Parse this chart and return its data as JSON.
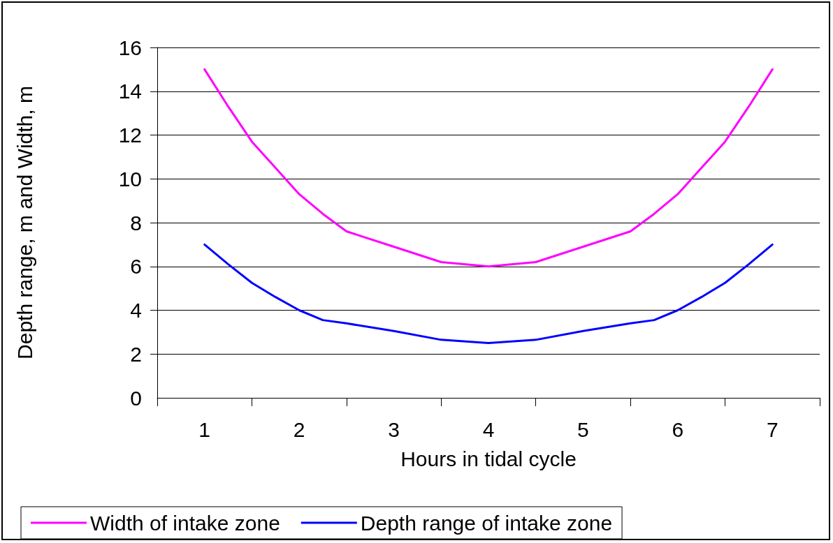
{
  "chart_data": {
    "type": "line",
    "xlabel": "Hours in tidal cycle",
    "ylabel": "Depth range, m and Width, m",
    "x": [
      1,
      1.25,
      1.5,
      1.75,
      2,
      2.25,
      2.5,
      3,
      3.5,
      4,
      4.5,
      5,
      5.5,
      5.75,
      6,
      6.25,
      6.5,
      6.75,
      7
    ],
    "series": [
      {
        "name": "Width of intake zone",
        "color": "#ff00ff",
        "values": [
          15,
          13.3,
          11.7,
          10.5,
          9.3,
          8.4,
          7.6,
          6.9,
          6.2,
          6.0,
          6.2,
          6.9,
          7.6,
          8.4,
          9.3,
          10.5,
          11.7,
          13.3,
          15
        ]
      },
      {
        "name": "Depth range of intake zone",
        "color": "#0000ff",
        "values": [
          7,
          6.1,
          5.25,
          4.6,
          4.0,
          3.55,
          3.4,
          3.05,
          2.65,
          2.5,
          2.65,
          3.05,
          3.4,
          3.55,
          4.0,
          4.6,
          5.25,
          6.1,
          7
        ]
      }
    ],
    "xlim": [
      0.5,
      7.5
    ],
    "xticks": [
      {
        "value": 0.5,
        "label": null
      },
      1,
      {
        "value": 1.5,
        "label": null
      },
      2,
      {
        "value": 2.5,
        "label": null
      },
      3,
      {
        "value": 3.5,
        "label": null
      },
      4,
      {
        "value": 4.5,
        "label": null
      },
      5,
      {
        "value": 5.5,
        "label": null
      },
      6,
      {
        "value": 6.5,
        "label": null
      },
      7,
      {
        "value": 7.5,
        "label": null
      }
    ],
    "ylim": [
      0,
      16
    ],
    "yticks": [
      0,
      2,
      4,
      6,
      8,
      10,
      12,
      14,
      16
    ],
    "grid": "y",
    "legend": "bottom",
    "marker": "none",
    "line_style": "solid"
  }
}
